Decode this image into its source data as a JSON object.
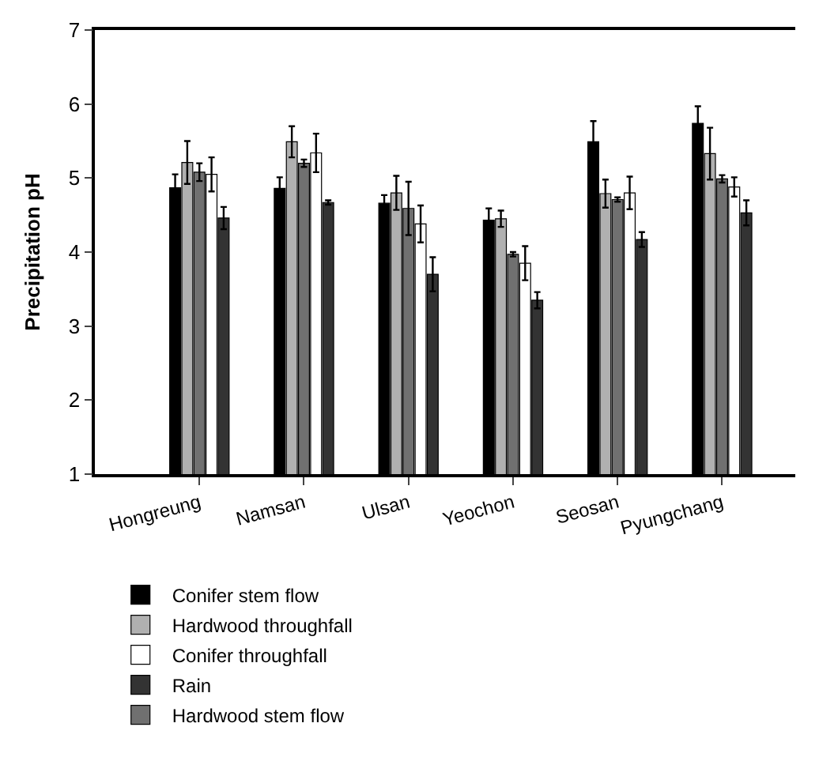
{
  "chart_data": {
    "type": "bar",
    "ylabel": "Precipitation pH",
    "categories": [
      "Hongreung",
      "Namsan",
      "Ulsan",
      "Yeochon",
      "Seosan",
      "Pyungchang"
    ],
    "series": [
      {
        "name": "Conifer stem flow",
        "color": "#000000",
        "values": [
          4.87,
          4.86,
          4.66,
          4.43,
          5.49,
          5.74
        ],
        "errors": [
          0.18,
          0.15,
          0.11,
          0.16,
          0.28,
          0.23
        ]
      },
      {
        "name": "Hardwood throughfall",
        "color": "#b0b0b0",
        "values": [
          5.21,
          5.49,
          4.8,
          4.45,
          4.79,
          5.33
        ],
        "errors": [
          0.29,
          0.21,
          0.23,
          0.11,
          0.19,
          0.35
        ]
      },
      {
        "name": "Hardwood stem flow",
        "color": "#707070",
        "values": [
          5.08,
          5.2,
          4.59,
          3.97,
          4.71,
          4.99
        ],
        "errors": [
          0.12,
          0.05,
          0.36,
          0.03,
          0.03,
          0.05
        ]
      },
      {
        "name": "Conifer throughfall",
        "color": "#ffffff",
        "values": [
          5.05,
          5.34,
          4.38,
          3.85,
          4.8,
          4.88
        ],
        "errors": [
          0.23,
          0.26,
          0.25,
          0.23,
          0.22,
          0.13
        ]
      },
      {
        "name": "Rain",
        "color": "#333333",
        "values": [
          4.46,
          4.67,
          3.7,
          3.35,
          4.17,
          4.53
        ],
        "errors": [
          0.15,
          0.03,
          0.23,
          0.11,
          0.1,
          0.17
        ]
      }
    ],
    "ylim": [
      1,
      7
    ],
    "yticks": [
      1,
      2,
      3,
      4,
      5,
      6,
      7
    ],
    "legend": "bottom"
  }
}
